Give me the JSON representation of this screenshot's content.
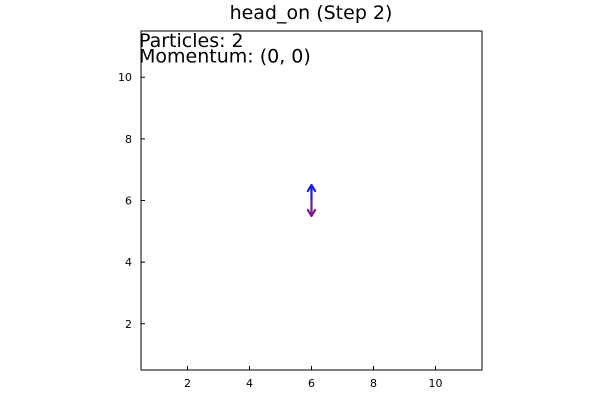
{
  "chart_data": {
    "type": "quiver",
    "title": "head_on (Step 2)",
    "xlabel": "",
    "ylabel": "",
    "xlim": [
      0.5,
      11.5
    ],
    "ylim": [
      0.5,
      11.5
    ],
    "x_ticks": [
      2,
      4,
      6,
      8,
      10
    ],
    "y_ticks": [
      2,
      4,
      6,
      8,
      10
    ],
    "grid": false,
    "legend": "none",
    "annotations": [
      {
        "text": "Particles: 2",
        "x": 0.5,
        "y": 11.5
      },
      {
        "text": "Momentum: (0, 0)",
        "x": 0.5,
        "y": 11.0
      }
    ],
    "arrows": [
      {
        "x": 6,
        "y": 6,
        "dx": 0,
        "dy": 0.5,
        "color": "#1a1aff"
      },
      {
        "x": 6,
        "y": 6,
        "dx": 0,
        "dy": -0.5,
        "color": "#7a1a86"
      }
    ]
  }
}
